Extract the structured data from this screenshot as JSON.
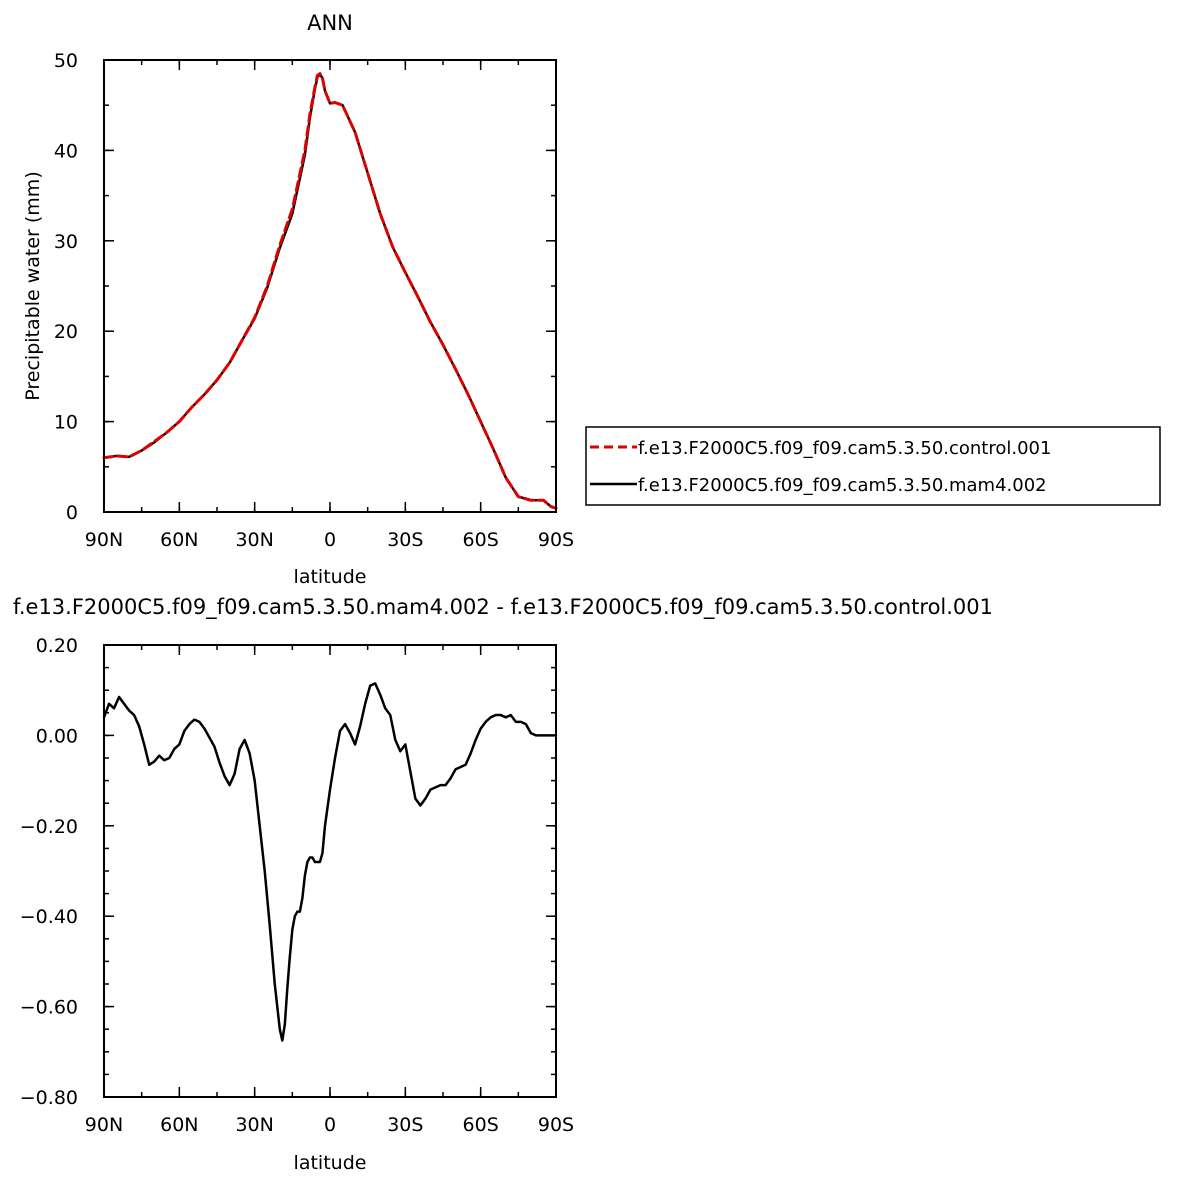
{
  "chart_data": [
    {
      "type": "line",
      "title": "ANN",
      "xlabel": "latitude",
      "ylabel": "Precipitable water (mm)",
      "xlim": [
        90,
        -90
      ],
      "ylim": [
        0,
        50
      ],
      "grid": false,
      "legend_position": "right",
      "x_ticks": [
        {
          "value": 90,
          "label": "90N"
        },
        {
          "value": 60,
          "label": "60N"
        },
        {
          "value": 30,
          "label": "30N"
        },
        {
          "value": 0,
          "label": "0"
        },
        {
          "value": -30,
          "label": "30S"
        },
        {
          "value": -60,
          "label": "60S"
        },
        {
          "value": -90,
          "label": "90S"
        }
      ],
      "y_ticks": [
        {
          "value": 0,
          "label": "0"
        },
        {
          "value": 10,
          "label": "10"
        },
        {
          "value": 20,
          "label": "20"
        },
        {
          "value": 30,
          "label": "30"
        },
        {
          "value": 40,
          "label": "40"
        },
        {
          "value": 50,
          "label": "50"
        }
      ],
      "series": [
        {
          "name": "f.e13.F2000C5.f09_f09.cam5.3.50.control.001",
          "color": "#e00000",
          "dash": "dashed",
          "x": [
            90,
            85,
            80,
            75,
            70,
            65,
            60,
            55,
            50,
            45,
            40,
            35,
            30,
            25,
            20,
            15,
            10,
            8,
            6,
            5,
            4,
            3,
            2,
            0,
            -2,
            -5,
            -10,
            -15,
            -20,
            -25,
            -30,
            -35,
            -40,
            -45,
            -50,
            -55,
            -60,
            -65,
            -70,
            -75,
            -80,
            -85,
            -88,
            -90
          ],
          "y": [
            6.0,
            6.2,
            6.1,
            6.8,
            7.8,
            8.8,
            10.0,
            11.6,
            13.0,
            14.6,
            16.5,
            19.0,
            21.5,
            25.0,
            29.5,
            33.5,
            40.0,
            44.0,
            47.0,
            48.3,
            48.5,
            48.0,
            46.6,
            45.2,
            45.3,
            45.0,
            42.0,
            37.5,
            33.0,
            29.3,
            26.5,
            23.8,
            21.0,
            18.5,
            15.8,
            13.0,
            10.0,
            7.0,
            3.8,
            1.7,
            1.3,
            1.3,
            0.6,
            0.4
          ]
        },
        {
          "name": "f.e13.F2000C5.f09_f09.cam5.3.50.mam4.002",
          "color": "#000000",
          "dash": "solid",
          "x": [
            90,
            85,
            80,
            75,
            70,
            65,
            60,
            55,
            50,
            45,
            40,
            35,
            30,
            25,
            20,
            15,
            10,
            8,
            6,
            5,
            4,
            3,
            2,
            0,
            -2,
            -5,
            -10,
            -15,
            -20,
            -25,
            -30,
            -35,
            -40,
            -45,
            -50,
            -55,
            -60,
            -65,
            -70,
            -75,
            -80,
            -85,
            -88,
            -90
          ],
          "y": [
            6.0,
            6.2,
            6.1,
            6.8,
            7.7,
            8.8,
            10.0,
            11.6,
            13.0,
            14.6,
            16.5,
            19.0,
            21.4,
            24.8,
            29.2,
            33.0,
            39.5,
            43.6,
            46.8,
            48.1,
            48.4,
            48.0,
            46.6,
            45.2,
            45.3,
            45.0,
            42.0,
            37.5,
            33.0,
            29.3,
            26.5,
            23.8,
            21.0,
            18.5,
            15.8,
            13.0,
            10.0,
            7.0,
            3.8,
            1.7,
            1.3,
            1.3,
            0.6,
            0.4
          ]
        }
      ]
    },
    {
      "type": "line",
      "title": "f.e13.F2000C5.f09_f09.cam5.3.50.mam4.002 - f.e13.F2000C5.f09_f09.cam5.3.50.control.001",
      "xlabel": "latitude",
      "ylabel": "",
      "xlim": [
        90,
        -90
      ],
      "ylim": [
        -0.8,
        0.2
      ],
      "grid": false,
      "x_ticks": [
        {
          "value": 90,
          "label": "90N"
        },
        {
          "value": 60,
          "label": "60N"
        },
        {
          "value": 30,
          "label": "30N"
        },
        {
          "value": 0,
          "label": "0"
        },
        {
          "value": -30,
          "label": "30S"
        },
        {
          "value": -60,
          "label": "60S"
        },
        {
          "value": -90,
          "label": "90S"
        }
      ],
      "y_ticks": [
        {
          "value": 0.2,
          "label": "0.20"
        },
        {
          "value": 0.0,
          "label": "0.00"
        },
        {
          "value": -0.2,
          "label": "−0.20"
        },
        {
          "value": -0.4,
          "label": "−0.40"
        },
        {
          "value": -0.6,
          "label": "−0.60"
        },
        {
          "value": -0.8,
          "label": "−0.80"
        }
      ],
      "series": [
        {
          "name": "",
          "color": "#000000",
          "dash": "solid",
          "x": [
            90,
            88,
            86,
            84,
            82,
            80,
            78,
            76,
            74,
            72,
            70,
            68,
            66,
            64,
            62,
            60,
            58,
            56,
            54,
            52,
            50,
            48,
            46,
            44,
            42,
            40,
            38,
            36,
            34,
            32,
            30,
            28,
            26,
            24,
            22,
            20,
            19,
            18,
            17,
            16,
            15,
            14,
            13,
            12,
            11,
            10,
            9,
            8,
            7,
            6,
            5,
            4,
            3,
            2,
            0,
            -2,
            -4,
            -6,
            -8,
            -10,
            -12,
            -14,
            -16,
            -18,
            -20,
            -22,
            -24,
            -26,
            -28,
            -30,
            -32,
            -34,
            -36,
            -38,
            -40,
            -42,
            -44,
            -46,
            -48,
            -50,
            -52,
            -54,
            -56,
            -58,
            -60,
            -62,
            -64,
            -66,
            -68,
            -70,
            -72,
            -74,
            -76,
            -78,
            -80,
            -82,
            -84,
            -86,
            -88,
            -90
          ],
          "y": [
            0.04,
            0.07,
            0.06,
            0.085,
            0.07,
            0.055,
            0.045,
            0.02,
            -0.02,
            -0.065,
            -0.058,
            -0.045,
            -0.055,
            -0.05,
            -0.03,
            -0.02,
            0.01,
            0.025,
            0.035,
            0.03,
            0.015,
            -0.005,
            -0.025,
            -0.06,
            -0.09,
            -0.11,
            -0.085,
            -0.03,
            -0.01,
            -0.04,
            -0.1,
            -0.2,
            -0.3,
            -0.42,
            -0.55,
            -0.65,
            -0.675,
            -0.64,
            -0.56,
            -0.49,
            -0.43,
            -0.4,
            -0.39,
            -0.39,
            -0.36,
            -0.31,
            -0.28,
            -0.27,
            -0.27,
            -0.28,
            -0.28,
            -0.28,
            -0.26,
            -0.2,
            -0.12,
            -0.05,
            0.01,
            0.025,
            0.005,
            -0.02,
            0.02,
            0.07,
            0.11,
            0.115,
            0.09,
            0.06,
            0.045,
            -0.01,
            -0.035,
            -0.02,
            -0.08,
            -0.14,
            -0.155,
            -0.14,
            -0.12,
            -0.115,
            -0.11,
            -0.11,
            -0.095,
            -0.075,
            -0.07,
            -0.065,
            -0.04,
            -0.01,
            0.015,
            0.03,
            0.04,
            0.045,
            0.045,
            0.04,
            0.045,
            0.03,
            0.03,
            0.025,
            0.005,
            0.0,
            0.0,
            0.0,
            0.0,
            0.0
          ]
        }
      ]
    }
  ],
  "legend": {
    "entries": [
      {
        "label": "f.e13.F2000C5.f09_f09.cam5.3.50.control.001",
        "color": "#e00000",
        "dash": "dashed"
      },
      {
        "label": "f.e13.F2000C5.f09_f09.cam5.3.50.mam4.002",
        "color": "#000000",
        "dash": "solid"
      }
    ]
  }
}
